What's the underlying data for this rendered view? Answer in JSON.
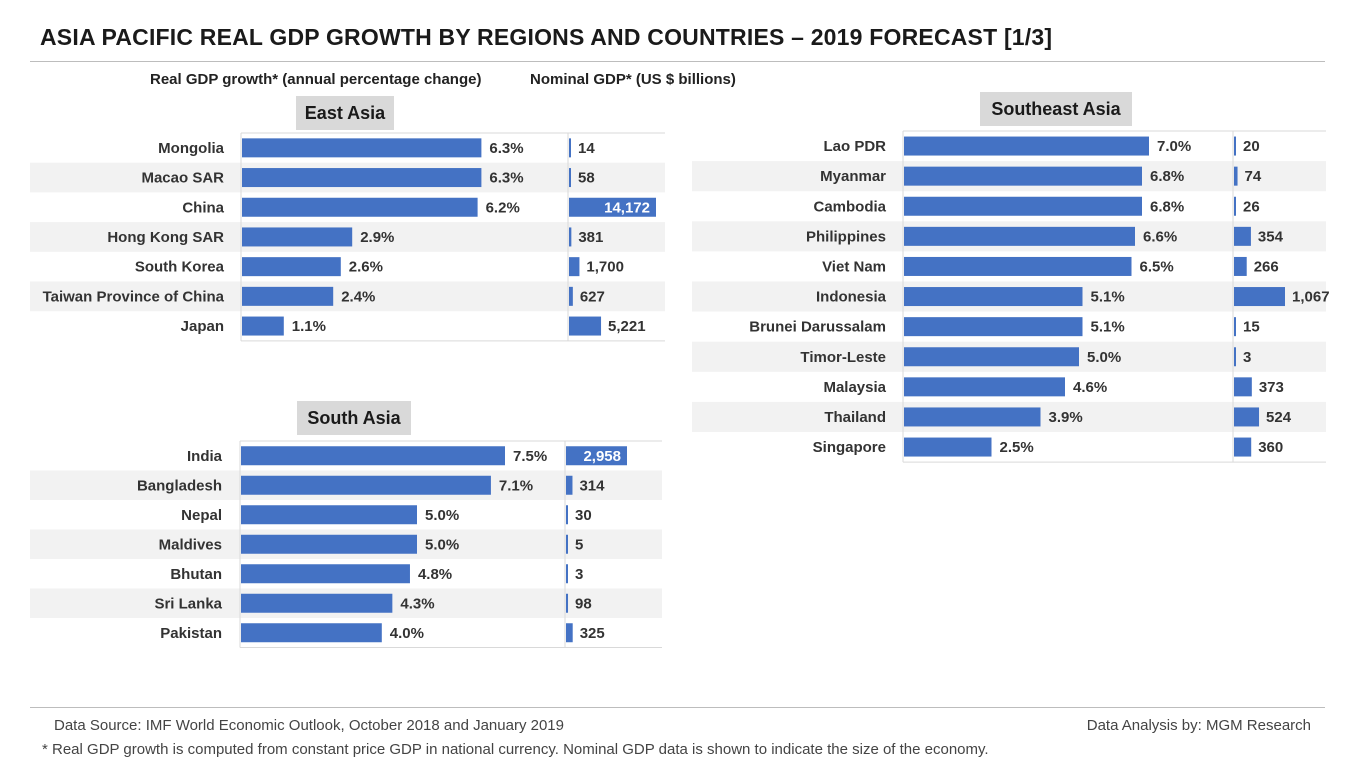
{
  "title": "ASIA PACIFIC REAL GDP GROWTH BY REGIONS AND COUNTRIES – 2019 FORECAST [1/3]",
  "headers": {
    "growth": "Real GDP growth* (annual percentage change)",
    "nominal": "Nominal GDP* (US $ billions)"
  },
  "colors": {
    "bar": "#4472C4",
    "band": "#f2f2f2",
    "label_bg": "#d9d9d9"
  },
  "footer": {
    "source": "Data Source: IMF World Economic Outlook, October 2018 and January 2019",
    "analysis": "Data Analysis by: MGM Research",
    "note": "* Real GDP growth is computed from constant price GDP in national currency. Nominal GDP data is shown to indicate the size of the economy."
  },
  "chart_data": [
    {
      "type": "bar",
      "orientation": "horizontal",
      "title": "East Asia",
      "categories": [
        "Mongolia",
        "Macao SAR",
        "China",
        "Hong Kong SAR",
        "South Korea",
        "Taiwan Province of China",
        "Japan"
      ],
      "series": [
        {
          "name": "Real GDP growth (%)",
          "values": [
            6.3,
            6.3,
            6.2,
            2.9,
            2.6,
            2.4,
            1.1
          ],
          "labels": [
            "6.3%",
            "6.3%",
            "6.2%",
            "2.9%",
            "2.6%",
            "2.4%",
            "1.1%"
          ]
        },
        {
          "name": "Nominal GDP (US $ billions)",
          "values": [
            14,
            58,
            14172,
            381,
            1700,
            627,
            5221
          ],
          "labels": [
            "14",
            "58",
            "14,172",
            "381",
            "1,700",
            "627",
            "5,221"
          ]
        }
      ]
    },
    {
      "type": "bar",
      "orientation": "horizontal",
      "title": "South Asia",
      "categories": [
        "India",
        "Bangladesh",
        "Nepal",
        "Maldives",
        "Bhutan",
        "Sri Lanka",
        "Pakistan"
      ],
      "series": [
        {
          "name": "Real GDP growth (%)",
          "values": [
            7.5,
            7.1,
            5.0,
            5.0,
            4.8,
            4.3,
            4.0
          ],
          "labels": [
            "7.5%",
            "7.1%",
            "5.0%",
            "5.0%",
            "4.8%",
            "4.3%",
            "4.0%"
          ]
        },
        {
          "name": "Nominal GDP (US $ billions)",
          "values": [
            2958,
            314,
            30,
            5,
            3,
            98,
            325
          ],
          "labels": [
            "2,958",
            "314",
            "30",
            "5",
            "3",
            "98",
            "325"
          ]
        }
      ]
    },
    {
      "type": "bar",
      "orientation": "horizontal",
      "title": "Southeast Asia",
      "categories": [
        "Lao PDR",
        "Myanmar",
        "Cambodia",
        "Philippines",
        "Viet Nam",
        "Indonesia",
        "Brunei Darussalam",
        "Timor-Leste",
        "Malaysia",
        "Thailand",
        "Singapore"
      ],
      "series": [
        {
          "name": "Real GDP growth (%)",
          "values": [
            7.0,
            6.8,
            6.8,
            6.6,
            6.5,
            5.1,
            5.1,
            5.0,
            4.6,
            3.9,
            2.5
          ],
          "labels": [
            "7.0%",
            "6.8%",
            "6.8%",
            "6.6%",
            "6.5%",
            "5.1%",
            "5.1%",
            "5.0%",
            "4.6%",
            "3.9%",
            "2.5%"
          ]
        },
        {
          "name": "Nominal GDP (US $ billions)",
          "values": [
            20,
            74,
            26,
            354,
            266,
            1067,
            15,
            3,
            373,
            524,
            360
          ],
          "labels": [
            "20",
            "74",
            "26",
            "354",
            "266",
            "1,067",
            "15",
            "3",
            "373",
            "524",
            "360"
          ]
        }
      ]
    }
  ]
}
